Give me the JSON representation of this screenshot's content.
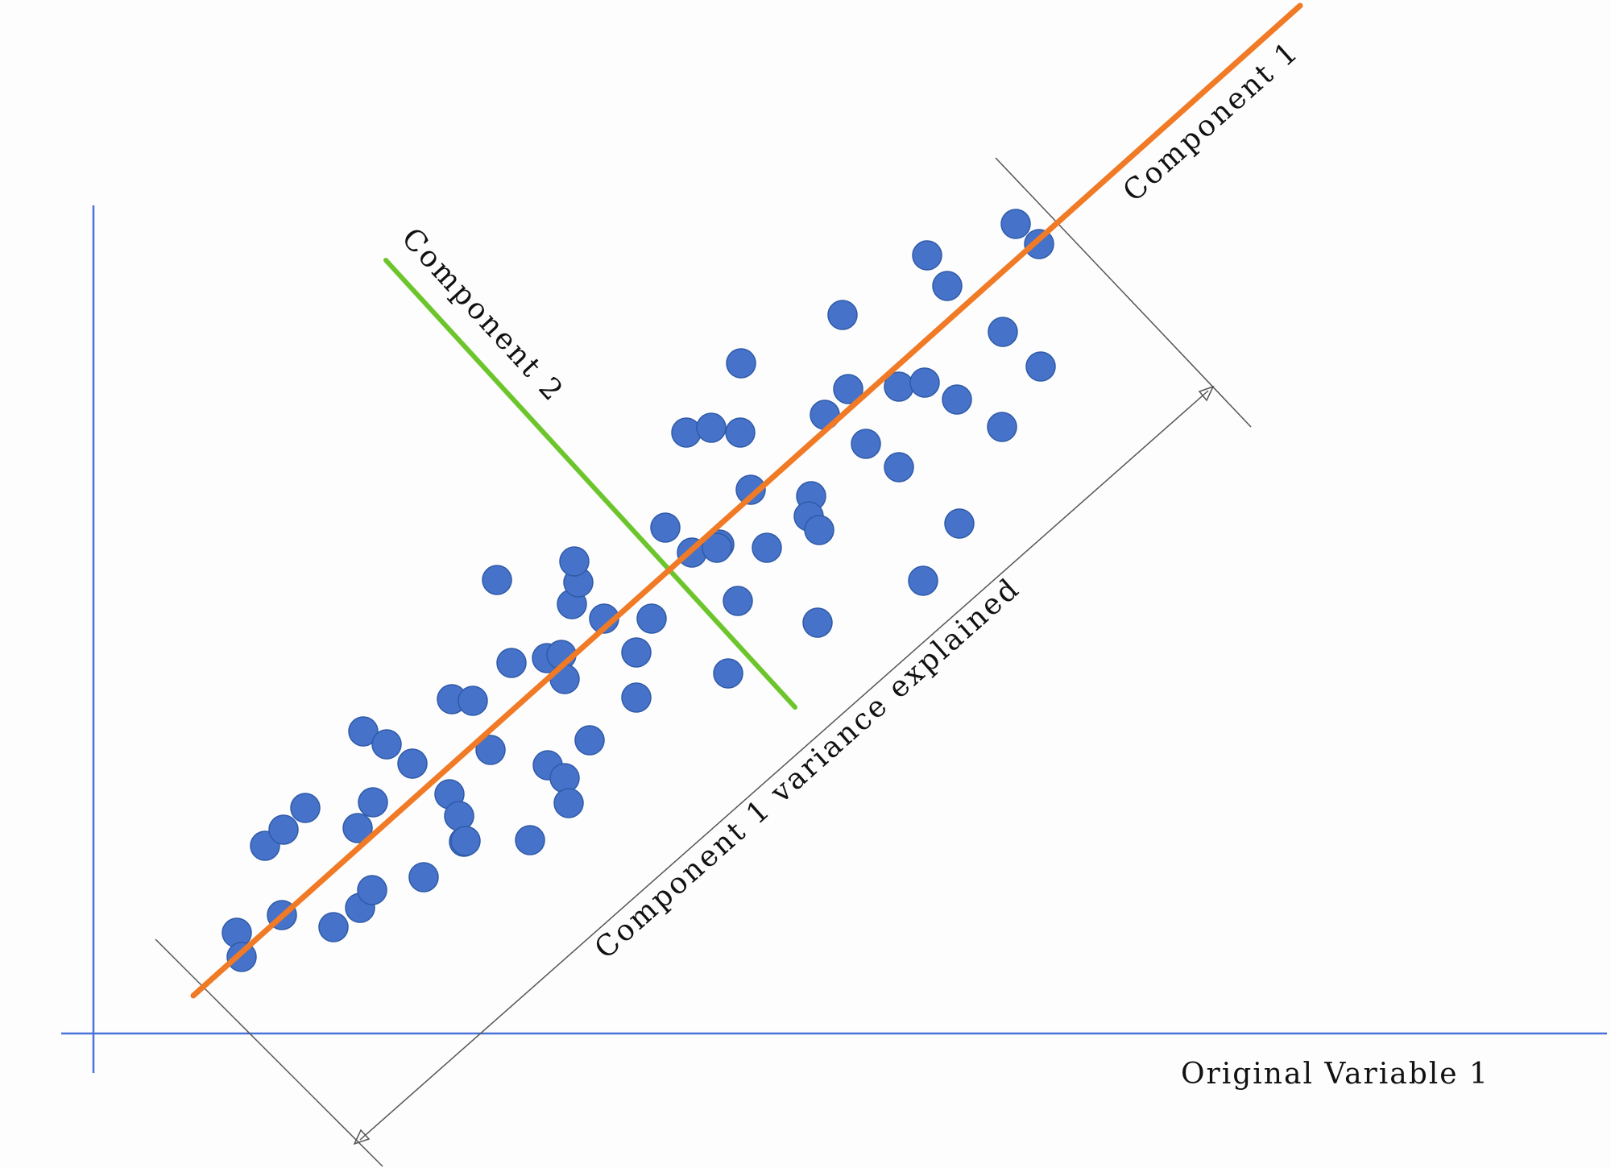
{
  "labels": {
    "component_1": "Component 1",
    "component_2": "Component 2",
    "variance_explained": "Component 1 variance explained",
    "x_axis": "Original Variable 1"
  },
  "colors": {
    "background": "#fdfdfd",
    "axes": "#4a72d8",
    "component_1_line": "#f07a25",
    "component_2_line": "#6cc52b",
    "points_fill": "#4673c9",
    "points_stroke": "#2f5aa8",
    "guide_lines": "#555555"
  }
}
